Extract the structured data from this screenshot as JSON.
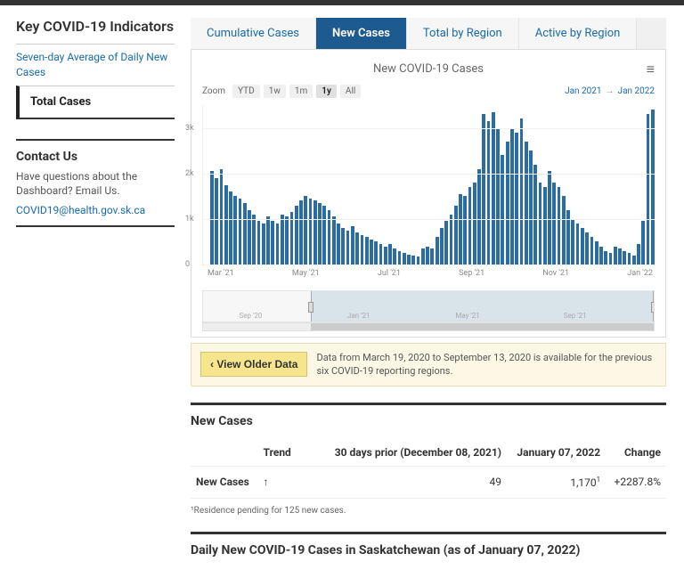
{
  "sidebar": {
    "title": "Key COVID-19 Indicators",
    "link1": "Seven-day Average of Daily New Cases",
    "active": "Total Cases",
    "contact_h": "Contact Us",
    "contact_p": "Have questions about the Dashboard? Email Us.",
    "contact_email": "COVID19@health.gov.sk.ca"
  },
  "tabs": {
    "t1": "Cumulative Cases",
    "t2": "New Cases",
    "t3": "Total by Region",
    "t4": "Active by Region"
  },
  "chart": {
    "title": "New COVID-19 Cases",
    "zoom_label": "Zoom",
    "zoom": {
      "ytd": "YTD",
      "w1": "1w",
      "m1": "1m",
      "y1": "1y",
      "all": "All"
    },
    "range_from": "Jan 2021",
    "range_to": "Jan 2022",
    "ymax": 3500,
    "yticks": [
      {
        "v": 0,
        "l": "0"
      },
      {
        "v": 1000,
        "l": "1k"
      },
      {
        "v": 2000,
        "l": "2k"
      },
      {
        "v": 3000,
        "l": "3k"
      }
    ],
    "values": [
      2050,
      1900,
      2100,
      1750,
      1600,
      1500,
      1450,
      1350,
      1200,
      1100,
      950,
      900,
      1050,
      950,
      900,
      1100,
      1050,
      1150,
      1300,
      1400,
      1500,
      1450,
      1400,
      1350,
      1300,
      1200,
      1050,
      900,
      800,
      750,
      850,
      700,
      650,
      600,
      550,
      500,
      450,
      400,
      450,
      350,
      300,
      250,
      220,
      200,
      180,
      350,
      400,
      350,
      600,
      800,
      950,
      1100,
      1300,
      1550,
      1500,
      1700,
      1800,
      2100,
      3300,
      3150,
      3350,
      3000,
      2400,
      2700,
      3000,
      2900,
      3200,
      2700,
      2500,
      2200,
      1800,
      1700,
      2050,
      1800,
      1700,
      1500,
      1200,
      1000,
      900,
      800,
      700,
      600,
      500,
      400,
      300,
      250,
      400,
      350,
      300,
      250,
      200,
      450,
      950,
      3300,
      3400
    ],
    "xlabels": {
      "l1": "Mar '21",
      "l2": "May '21",
      "l3": "Jul '21",
      "l4": "Sep '21",
      "l5": "Nov '21",
      "l6": "Jan '22"
    },
    "nav": {
      "l1": "Sep '20",
      "l2": "Jan '21",
      "l3": "May '21",
      "l4": "Sep '21"
    },
    "bar_color": "#2b6ca3"
  },
  "older": {
    "btn": "‹  View Older Data",
    "txt": "Data from March 19, 2020 to September 13, 2020 is available for the previous six COVID-19 reporting regions."
  },
  "table": {
    "heading": "New Cases",
    "cols": {
      "c1": "",
      "c2": "Trend",
      "c3": "30 days prior (December 08, 2021)",
      "c4": "January 07, 2022",
      "c5": "Change"
    },
    "row": {
      "r1": "New Cases",
      "r2": "↑",
      "r3": "49",
      "r4": "1,170",
      "r4sup": "1",
      "r5": "+2287.8%"
    },
    "footnote": "¹Residence pending for 125 new cases."
  },
  "section2": {
    "heading": "Daily New COVID-19 Cases in Saskatchewan (as of January 07, 2022)"
  }
}
